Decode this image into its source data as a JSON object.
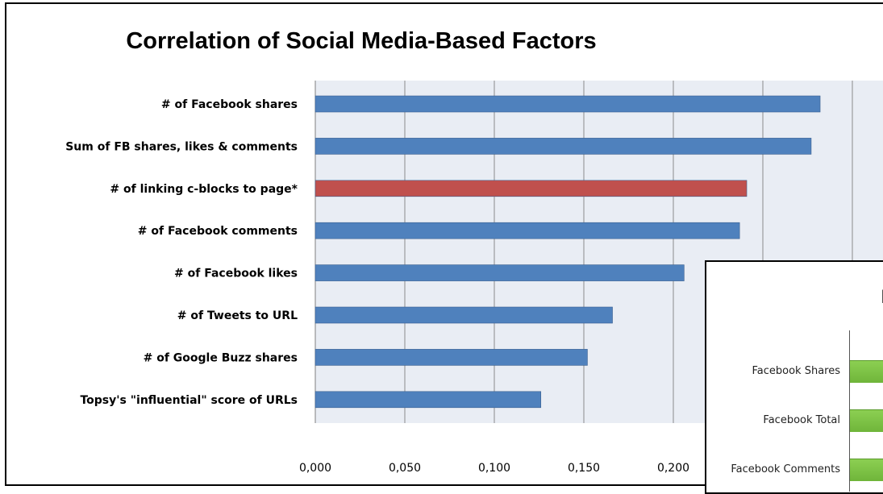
{
  "chart_data": {
    "type": "bar",
    "orientation": "horizontal",
    "title": "Correlation of Social Media-Based Factors",
    "categories": [
      "# of Facebook shares",
      "Sum of FB shares, likes & comments",
      "# of linking c-blocks to page*",
      "# of Facebook comments",
      "# of Facebook likes",
      "# of Tweets to URL",
      "# of Google Buzz shares",
      "Topsy's \"influential\" score of URLs"
    ],
    "values": [
      0.282,
      0.277,
      0.241,
      0.237,
      0.206,
      0.166,
      0.152,
      0.126
    ],
    "colors": [
      "#4f81bd",
      "#4f81bd",
      "#c0504d",
      "#4f81bd",
      "#4f81bd",
      "#4f81bd",
      "#4f81bd",
      "#4f81bd"
    ],
    "xticks": [
      "0,000",
      "0,050",
      "0,100",
      "0,150",
      "0,200"
    ],
    "xlim": [
      0,
      0.3
    ],
    "grid": true,
    "plot_background": "#e9edf4"
  },
  "inset": {
    "title_fragment": "F",
    "labels": [
      "Facebook Shares",
      "Facebook Total",
      "Facebook Comments"
    ],
    "bar_color": "#7dc145"
  }
}
